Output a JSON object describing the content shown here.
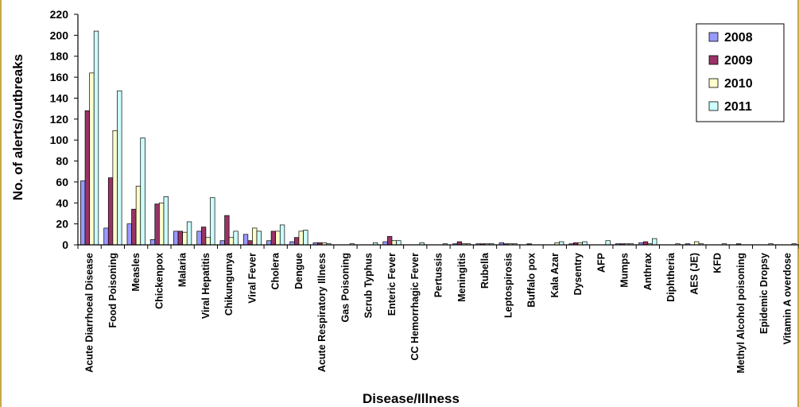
{
  "chart_data": {
    "type": "bar",
    "title": "",
    "xlabel": "Disease/Illness",
    "ylabel": "No. of alerts/outbreaks",
    "ylim": [
      0,
      220
    ],
    "yticks": [
      0,
      20,
      40,
      60,
      80,
      100,
      120,
      140,
      160,
      180,
      200,
      220
    ],
    "grid": false,
    "legend_position": "top-right",
    "categories": [
      "Acute Diarrhoeal Disease",
      "Food Poisoning",
      "Measles",
      "Chickenpox",
      "Malaria",
      "Viral Hepatitis",
      "Chikungunya",
      "Viral Fever",
      "Cholera",
      "Dengue",
      "Acute Respiratory Illness",
      "Gas Poisoning",
      "Scrub Typhus",
      "Enteric Fever",
      "CC Hemorrhagic Fever",
      "Pertussis",
      "Meningitis",
      "Rubella",
      "Leptospirosis",
      "Buffalo pox",
      "Kala Azar",
      "Dysentry",
      "AFP",
      "Mumps",
      "Anthrax",
      "Diphtheria",
      "AES (JE)",
      "KFD",
      "Methyl Alcohol poisoning",
      "Epidemic Dropsy",
      "Vitamin A overdose"
    ],
    "series": [
      {
        "name": "2008",
        "color": "#9999ff",
        "values": [
          61,
          16,
          20,
          5,
          13,
          13,
          4,
          10,
          4,
          3,
          2,
          0,
          0,
          3,
          0,
          0,
          1,
          1,
          2,
          0,
          0,
          1,
          0,
          1,
          2,
          0,
          1,
          0,
          0,
          0,
          0
        ]
      },
      {
        "name": "2009",
        "color": "#993366",
        "values": [
          128,
          64,
          34,
          39,
          13,
          17,
          28,
          4,
          13,
          7,
          2,
          0,
          0,
          8,
          0,
          0,
          3,
          1,
          1,
          1,
          0,
          2,
          0,
          1,
          3,
          0,
          0,
          0,
          1,
          0,
          0
        ]
      },
      {
        "name": "2010",
        "color": "#ffffcc",
        "values": [
          164,
          109,
          56,
          40,
          12,
          7,
          7,
          16,
          13,
          13,
          2,
          0,
          0,
          4,
          0,
          0,
          1,
          1,
          1,
          0,
          2,
          2,
          0,
          1,
          1,
          0,
          3,
          0,
          0,
          0,
          0
        ]
      },
      {
        "name": "2011",
        "color": "#ccffff",
        "values": [
          204,
          147,
          102,
          46,
          22,
          45,
          13,
          13,
          19,
          14,
          1,
          1,
          2,
          4,
          2,
          1,
          1,
          1,
          1,
          0,
          3,
          3,
          4,
          1,
          6,
          1,
          1,
          1,
          0,
          1,
          1
        ]
      }
    ]
  }
}
